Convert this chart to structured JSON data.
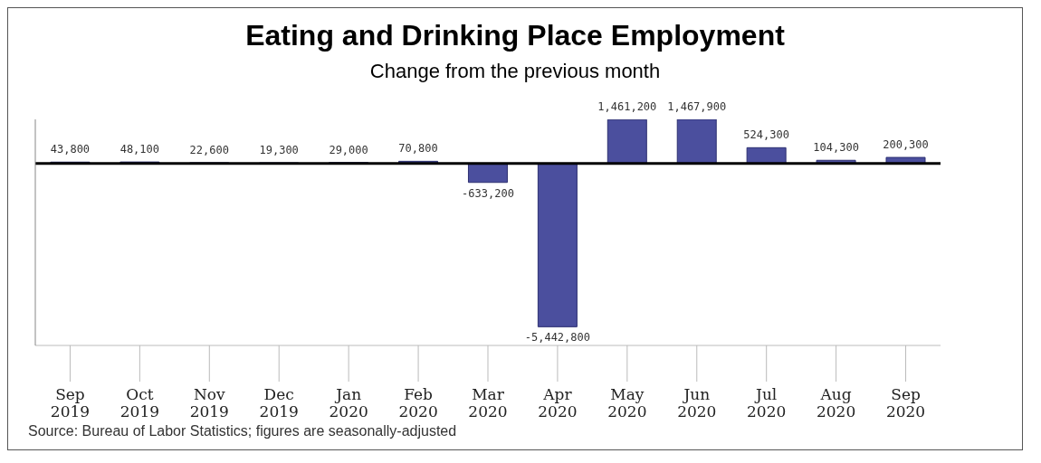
{
  "chart_data": {
    "type": "bar",
    "title": "Eating and Drinking Place Employment",
    "subtitle": "Change from the previous month",
    "categories": [
      "Sep 2019",
      "Oct 2019",
      "Nov 2019",
      "Dec 2019",
      "Jan 2020",
      "Feb 2020",
      "Mar 2020",
      "Apr 2020",
      "May 2020",
      "Jun 2020",
      "Jul 2020",
      "Aug 2020",
      "Sep 2020"
    ],
    "values": [
      43800,
      48100,
      22600,
      19300,
      29000,
      70800,
      -633200,
      -5442800,
      1461200,
      1467900,
      524300,
      104300,
      200300
    ],
    "value_labels": [
      "43,800",
      "48,100",
      "22,600",
      "19,300",
      "29,000",
      "70,800",
      "-633,200",
      "-5,442,800",
      "1,461,200",
      "1,467,900",
      "524,300",
      "104,300",
      "200,300"
    ],
    "color": "#4b4f9e",
    "ref_lines": [
      {
        "axis": "y",
        "value": 0,
        "color": "#000000"
      }
    ],
    "grid": false,
    "legend": false,
    "annotations": [
      "Source: Bureau of Labor Statistics; figures are seasonally-adjusted"
    ]
  }
}
